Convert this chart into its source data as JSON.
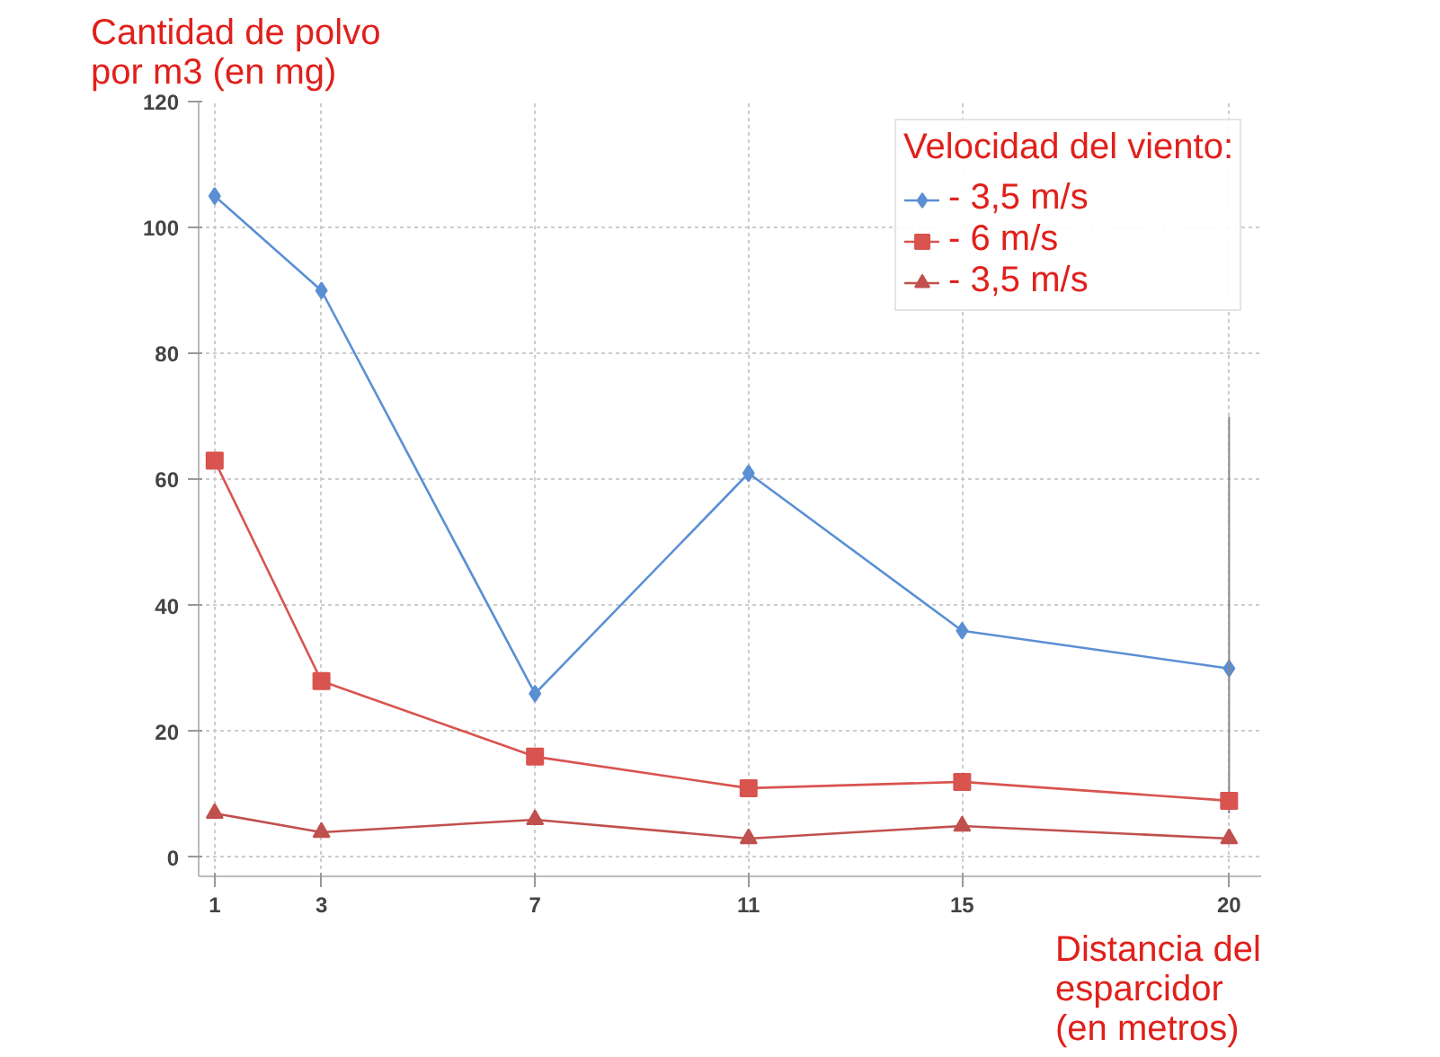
{
  "chart_data": {
    "type": "line",
    "ylabel": "Cantidad de polvo\npor m3 (en mg)",
    "xlabel": "Distancia del\nesparcidor\n(en metros)",
    "legend_title": "Velocidad del viento:",
    "x": [
      1,
      3,
      7,
      11,
      15,
      20
    ],
    "xlim": [
      0.7,
      20.6
    ],
    "xticks": [
      1,
      3,
      7,
      11,
      15,
      20
    ],
    "ylim": [
      -3,
      120
    ],
    "yticks": [
      0,
      20,
      40,
      60,
      80,
      100,
      120
    ],
    "series": [
      {
        "name": "- 3,5 m/s",
        "color": "#5a8fd4",
        "marker": "diamond",
        "values": [
          105,
          90,
          26,
          61,
          36,
          30
        ],
        "errors": [
          null,
          null,
          null,
          null,
          null,
          [
            7,
            70
          ]
        ]
      },
      {
        "name": "- 6 m/s",
        "color": "#d9534f",
        "marker": "square",
        "values": [
          63,
          28,
          16,
          11,
          12,
          9
        ]
      },
      {
        "name": "- 3,5 m/s",
        "color": "#c0504d",
        "marker": "triangle",
        "values": [
          7,
          4,
          6,
          3,
          5,
          3
        ]
      }
    ],
    "grid": true,
    "legend": "top right",
    "line_style": "solid"
  }
}
